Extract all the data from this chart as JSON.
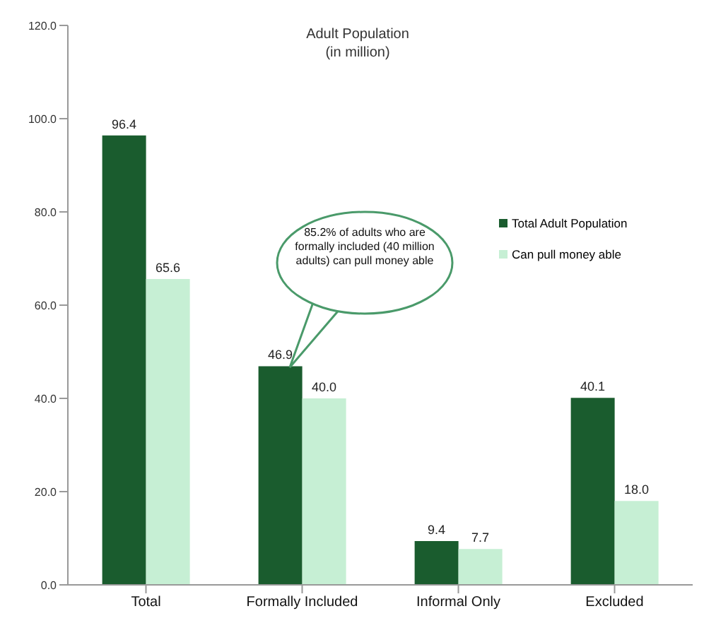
{
  "chart_data": {
    "type": "bar",
    "title": "Adult Population",
    "subtitle": "(in million)",
    "categories": [
      "Total",
      "Formally Included",
      "Informal Only",
      "Excluded"
    ],
    "series": [
      {
        "name": "Total Adult Population",
        "color": "#1a5c2e",
        "values": [
          96.4,
          46.9,
          9.4,
          40.1
        ],
        "value_labels": [
          "96.4",
          "46.9",
          "9.4",
          "40.1"
        ]
      },
      {
        "name": "Can pull money able",
        "color": "#c6efd4",
        "values": [
          65.6,
          40.0,
          7.7,
          18.0
        ],
        "value_labels": [
          "65.6",
          "40.0",
          "7.7",
          "18.0"
        ]
      }
    ],
    "ylim": [
      0,
      120
    ],
    "yticks": [
      {
        "value": 0,
        "label": "0.0"
      },
      {
        "value": 20,
        "label": "20.0"
      },
      {
        "value": 40,
        "label": "40.0"
      },
      {
        "value": 60,
        "label": "60.0"
      },
      {
        "value": 80,
        "label": "80.0"
      },
      {
        "value": 100,
        "label": "100.0"
      },
      {
        "value": 120,
        "label": "120.0"
      }
    ],
    "legend": "right",
    "grid": false,
    "annotations": [
      "85.2% of adults who are formally included (40 million adults) can pull money able"
    ]
  }
}
